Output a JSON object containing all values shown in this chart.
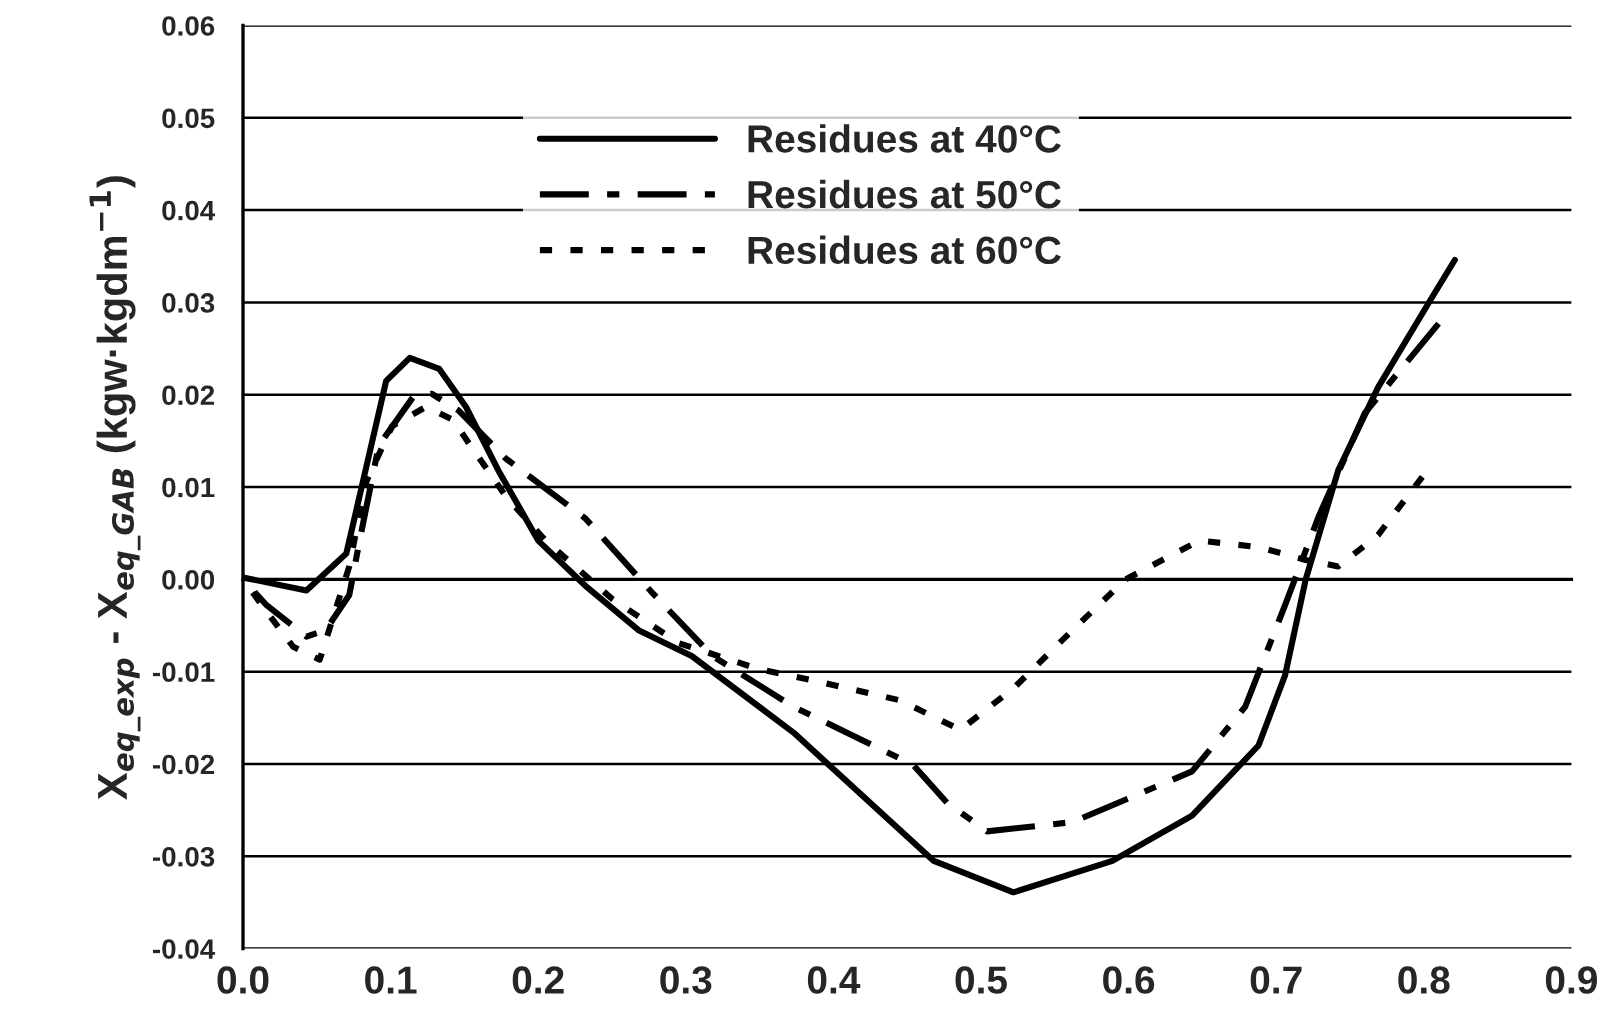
{
  "chart_data": {
    "type": "line",
    "ylabel": "X$_{eq_exp}$ - X$_{eq_GAB}$ (kgw·kgdm$^{−1}$)",
    "xlim": [
      0,
      0.9
    ],
    "xticks": [
      {
        "value": 0,
        "label": "0.0"
      },
      0.1,
      0.2,
      0.3,
      0.4,
      0.5,
      0.6,
      0.7,
      0.8,
      0.9
    ],
    "ylim": [
      -0.04,
      0.06
    ],
    "yticks": [
      {
        "value": -0.04,
        "label": "-0.04"
      },
      {
        "value": -0.03,
        "label": "-0.03"
      },
      {
        "value": -0.02,
        "label": "-0.02"
      },
      {
        "value": -0.01,
        "label": "-0.01"
      },
      {
        "value": 0,
        "label": "0.00"
      },
      {
        "value": 0.01,
        "label": "0.01"
      },
      {
        "value": 0.02,
        "label": "0.02"
      },
      {
        "value": 0.03,
        "label": "0.03"
      },
      {
        "value": 0.04,
        "label": "0.04"
      },
      {
        "value": 0.05,
        "label": "0.05"
      },
      {
        "value": 0.06,
        "label": "0.06"
      }
    ],
    "grid": "y",
    "legend": "top",
    "marker": "none",
    "series": [
      {
        "name": "Residues at 40°C",
        "color": "#000000",
        "line_style": "solid",
        "x": [
          0,
          0.043,
          0.07,
          0.083,
          0.097,
          0.113,
          0.133,
          0.151,
          0.173,
          0.2,
          0.232,
          0.268,
          0.304,
          0.373,
          0.468,
          0.522,
          0.589,
          0.643,
          0.688,
          0.706,
          0.72,
          0.742,
          0.769,
          0.805,
          0.821
        ],
        "values": [
          0.0002,
          -0.0012,
          0.0028,
          0.0118,
          0.0215,
          0.024,
          0.0228,
          0.0187,
          0.0118,
          0.0042,
          -0.0007,
          -0.0055,
          -0.0083,
          -0.0166,
          -0.0305,
          -0.0339,
          -0.0305,
          -0.0256,
          -0.018,
          -0.0104,
          0,
          0.0118,
          0.0208,
          0.0304,
          0.0346
        ]
      },
      {
        "name": "Residues at 50°C",
        "color": "#000000",
        "line_style": "dashdot",
        "x": [
          0,
          0.016,
          0.043,
          0.056,
          0.072,
          0.079,
          0.092,
          0.115,
          0.128,
          0.146,
          0.178,
          0.232,
          0.277,
          0.318,
          0.373,
          0.454,
          0.477,
          0.504,
          0.562,
          0.643,
          0.679,
          0.706,
          0.729,
          0.76,
          0.81
        ],
        "values": [
          0,
          -0.0028,
          -0.0062,
          -0.0055,
          -0.0017,
          0.0042,
          0.0145,
          0.0197,
          0.0201,
          0.0183,
          0.0131,
          0.0066,
          -0.0014,
          -0.0083,
          -0.0138,
          -0.0201,
          -0.0242,
          -0.0273,
          -0.0263,
          -0.0208,
          -0.0138,
          -0.0028,
          0.0069,
          0.018,
          0.0277
        ]
      },
      {
        "name": "Residues at 60°C",
        "color": "#000000",
        "line_style": "dotted",
        "x": [
          0,
          0.016,
          0.034,
          0.052,
          0.072,
          0.083,
          0.101,
          0.124,
          0.142,
          0.178,
          0.205,
          0.25,
          0.295,
          0.349,
          0.385,
          0.445,
          0.486,
          0.522,
          0.562,
          0.598,
          0.648,
          0.688,
          0.72,
          0.742,
          0.769,
          0.799
        ],
        "values": [
          0,
          -0.0035,
          -0.0073,
          -0.0087,
          0.0014,
          0.0104,
          0.0166,
          0.0187,
          0.0173,
          0.009,
          0.0042,
          -0.0021,
          -0.0069,
          -0.0097,
          -0.0109,
          -0.0131,
          -0.0163,
          -0.0118,
          -0.0055,
          0,
          0.0042,
          0.0035,
          0.0021,
          0.0014,
          0.0048,
          0.0111
        ]
      }
    ]
  }
}
